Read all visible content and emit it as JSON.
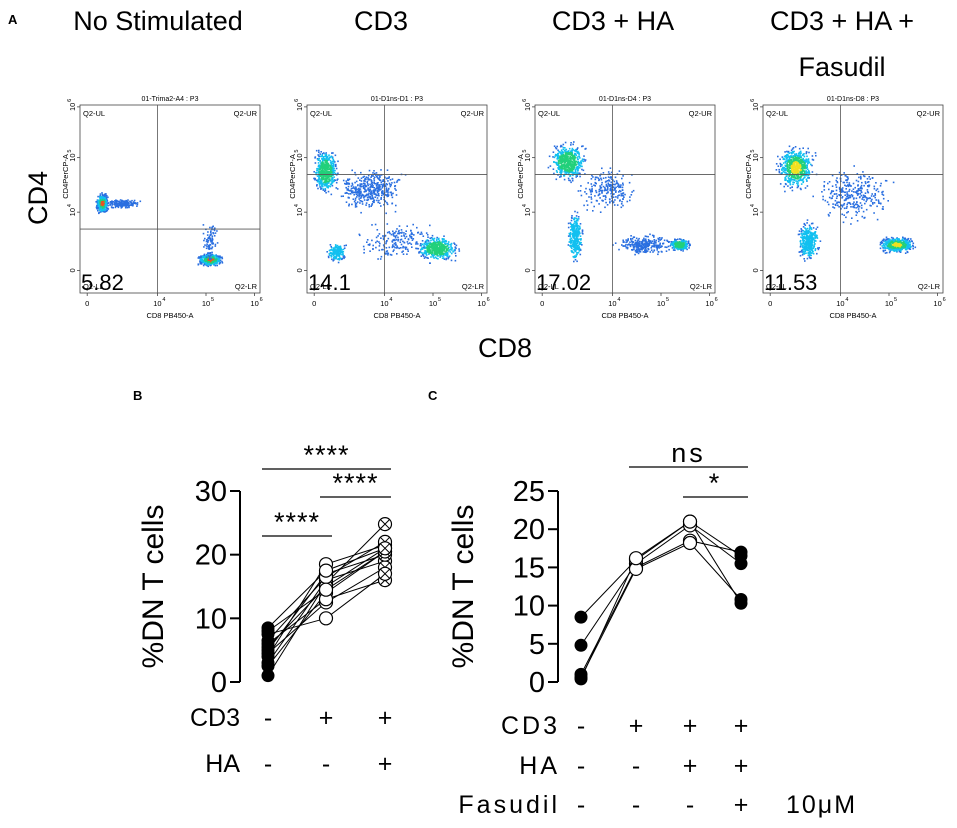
{
  "panel_labels": {
    "a": "A",
    "b": "B",
    "c": "C"
  },
  "panel_a": {
    "titles": [
      "No Stimulated",
      "CD3",
      "CD3 + HA",
      "CD3 + HA +",
      "Fasudil"
    ],
    "ylabel": "CD4",
    "xlabel": "CD8",
    "plots": [
      {
        "header": "01-Trima2-A4 : P3",
        "dn_percent": "5.82"
      },
      {
        "header": "01-D1ns-D1 : P3",
        "dn_percent": "14.1"
      },
      {
        "header": "01-D1ns-D4 : P3",
        "dn_percent": "17.02"
      },
      {
        "header": "01-D1ns-D8 : P3",
        "dn_percent": "11.53"
      }
    ],
    "quadrants": {
      "ul": "Q2-UL",
      "ur": "Q2-UR",
      "ll": "Q2-LL",
      "lr": "Q2-LR"
    },
    "small_ylabel": "CD4PerCP-A",
    "small_xlabel": "CD8 PB450-A",
    "xticks": [
      "0",
      "10",
      "10",
      "10"
    ],
    "xtick_exps": [
      "",
      "4",
      "5",
      "6"
    ],
    "yticks": [
      "0",
      "10",
      "10",
      "10"
    ],
    "ytick_exps": [
      "",
      "4",
      "5",
      "6"
    ],
    "density_colors": [
      "#2a6fe0",
      "#12c0f0",
      "#22d07a",
      "#f0e020",
      "#f05020"
    ]
  },
  "chart_data": [
    {
      "type": "scatter",
      "panel": "B",
      "ylabel": "%DN T cells",
      "ylim": [
        0,
        30
      ],
      "yticks": [
        0,
        10,
        20,
        30
      ],
      "groups": [
        "No Stimulated",
        "CD3",
        "CD3 + HA"
      ],
      "condition_rows": [
        {
          "label": "CD3",
          "values": [
            "-",
            "+",
            "+"
          ]
        },
        {
          "label": "HA",
          "values": [
            "-",
            "-",
            "+"
          ]
        }
      ],
      "paired_series": [
        [
          1.0,
          15.5,
          24.8
        ],
        [
          2.5,
          14.0,
          20.5
        ],
        [
          3.0,
          16.0,
          19.0
        ],
        [
          4.0,
          18.5,
          21.5
        ],
        [
          4.5,
          12.5,
          18.0
        ],
        [
          5.0,
          17.0,
          20.0
        ],
        [
          5.5,
          15.0,
          21.0
        ],
        [
          6.0,
          13.0,
          16.0
        ],
        [
          6.5,
          16.5,
          22.0
        ],
        [
          7.5,
          10.0,
          17.0
        ],
        [
          8.0,
          14.5,
          20.5
        ],
        [
          8.5,
          17.5,
          21.0
        ]
      ],
      "significance": [
        {
          "from": 0,
          "to": 2,
          "label": "****"
        },
        {
          "from": 1,
          "to": 2,
          "label": "****"
        },
        {
          "from": 0,
          "to": 1,
          "label": "****"
        }
      ]
    },
    {
      "type": "scatter",
      "panel": "C",
      "ylabel": "%DN T cells",
      "ylim": [
        0,
        25
      ],
      "yticks": [
        0,
        5,
        10,
        15,
        20,
        25
      ],
      "groups": [
        "No Stimulated",
        "CD3",
        "CD3 + HA",
        "CD3 + HA + Fasudil"
      ],
      "condition_rows": [
        {
          "label": "CD3",
          "values": [
            "-",
            "+",
            "+",
            "+"
          ]
        },
        {
          "label": "HA",
          "values": [
            "-",
            "-",
            "+",
            "+"
          ]
        },
        {
          "label": "Fasudil",
          "values": [
            "-",
            "-",
            "-",
            "+"
          ],
          "suffix": "10μM"
        }
      ],
      "paired_series": [
        [
          8.5,
          16.0,
          21.0,
          16.5
        ],
        [
          4.8,
          15.5,
          20.5,
          15.5
        ],
        [
          1.0,
          15.0,
          18.5,
          17.0
        ],
        [
          0.6,
          14.8,
          18.2,
          10.8
        ],
        [
          0.4,
          16.2,
          21.0,
          10.3
        ]
      ],
      "significance": [
        {
          "from": 1,
          "to": 3,
          "label": "ns"
        },
        {
          "from": 2,
          "to": 3,
          "label": "*"
        }
      ]
    }
  ]
}
